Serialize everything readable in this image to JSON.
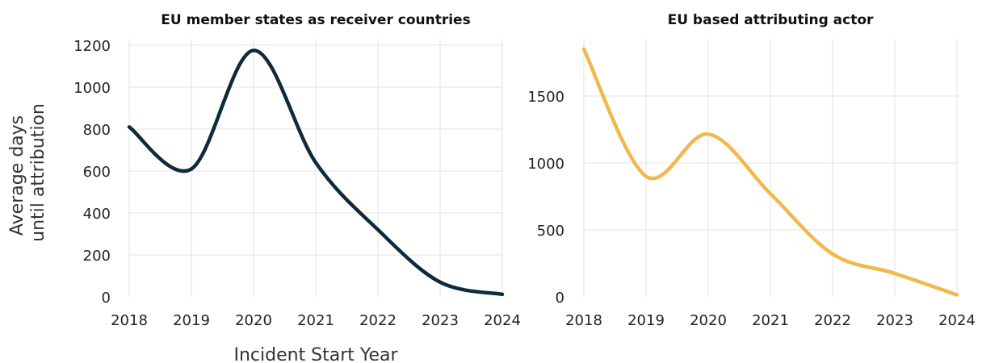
{
  "chart_data": [
    {
      "type": "line",
      "title": "EU member states as receiver countries",
      "xlabel": "Incident Start Year",
      "ylabel": "Average days until attribution",
      "ylabel_lines": [
        "Average days",
        "until attribution"
      ],
      "x": [
        2018,
        2019,
        2020,
        2021,
        2022,
        2023,
        2024
      ],
      "xticks": [
        "2018",
        "2019",
        "2020",
        "2021",
        "2022",
        "2023",
        "2024"
      ],
      "yticks": [
        0,
        200,
        400,
        600,
        800,
        1000,
        1200
      ],
      "xlim": [
        2018,
        2024
      ],
      "ylim": [
        0,
        1200
      ],
      "grid": "vertical and horizontal",
      "series": [
        {
          "color": "#0e2a3b",
          "values": [
            810,
            610,
            1175,
            640,
            320,
            70,
            12
          ]
        }
      ]
    },
    {
      "type": "line",
      "title": "EU based attributing actor",
      "xlabel": "",
      "ylabel": "",
      "x": [
        2018,
        2019,
        2020,
        2021,
        2022,
        2023,
        2024
      ],
      "xticks": [
        "2018",
        "2019",
        "2020",
        "2021",
        "2022",
        "2023",
        "2024"
      ],
      "yticks": [
        0,
        500,
        1000,
        1500
      ],
      "xlim": [
        2018,
        2024
      ],
      "ylim": [
        0,
        1500
      ],
      "grid": "vertical and horizontal",
      "series": [
        {
          "color": "#f2b84b",
          "values": [
            1850,
            900,
            1215,
            770,
            320,
            175,
            15
          ]
        }
      ]
    }
  ]
}
